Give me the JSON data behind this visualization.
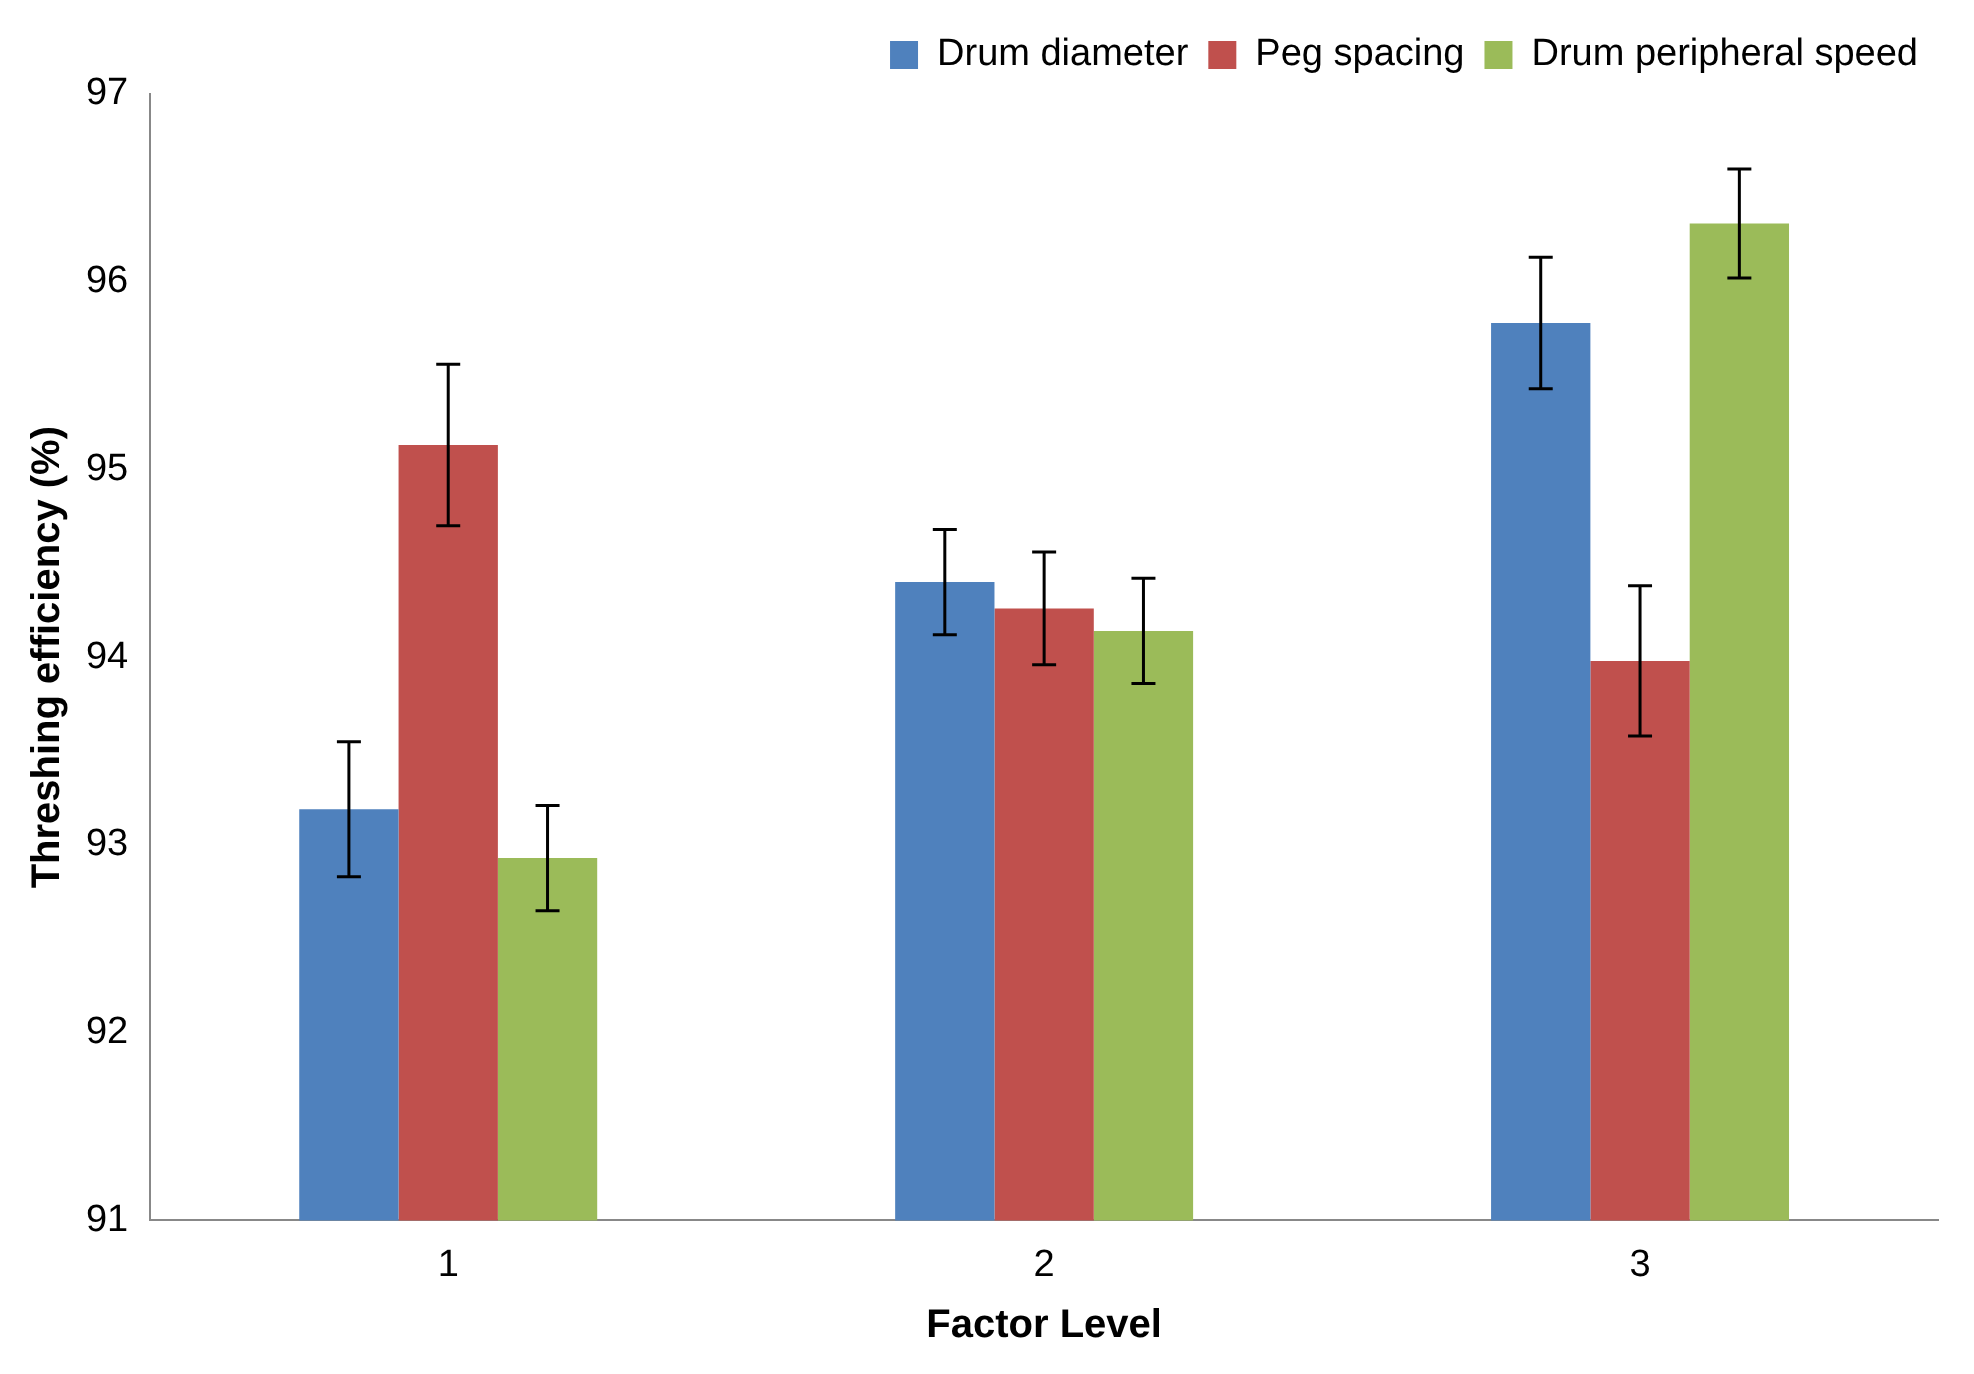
{
  "chart_data": {
    "type": "bar",
    "xlabel": "Factor Level",
    "ylabel": "Threshing efficiency (%)",
    "categories": [
      "1",
      "2",
      "3"
    ],
    "series": [
      {
        "name": "Drum diameter",
        "color": "#4f81bd",
        "values": [
          93.19,
          94.4,
          95.78
        ],
        "errors": [
          0.36,
          0.28,
          0.35
        ]
      },
      {
        "name": "Peg spacing",
        "color": "#c0504d",
        "values": [
          95.13,
          94.26,
          93.98
        ],
        "errors": [
          0.43,
          0.3,
          0.4
        ]
      },
      {
        "name": "Drum peripheral speed",
        "color": "#9bbb59",
        "values": [
          92.93,
          94.14,
          96.31
        ],
        "errors": [
          0.28,
          0.28,
          0.29
        ]
      }
    ],
    "ylim": [
      91,
      97
    ],
    "yticks": [
      91,
      92,
      93,
      94,
      95,
      96,
      97
    ],
    "grid": false,
    "legend": "top right"
  }
}
